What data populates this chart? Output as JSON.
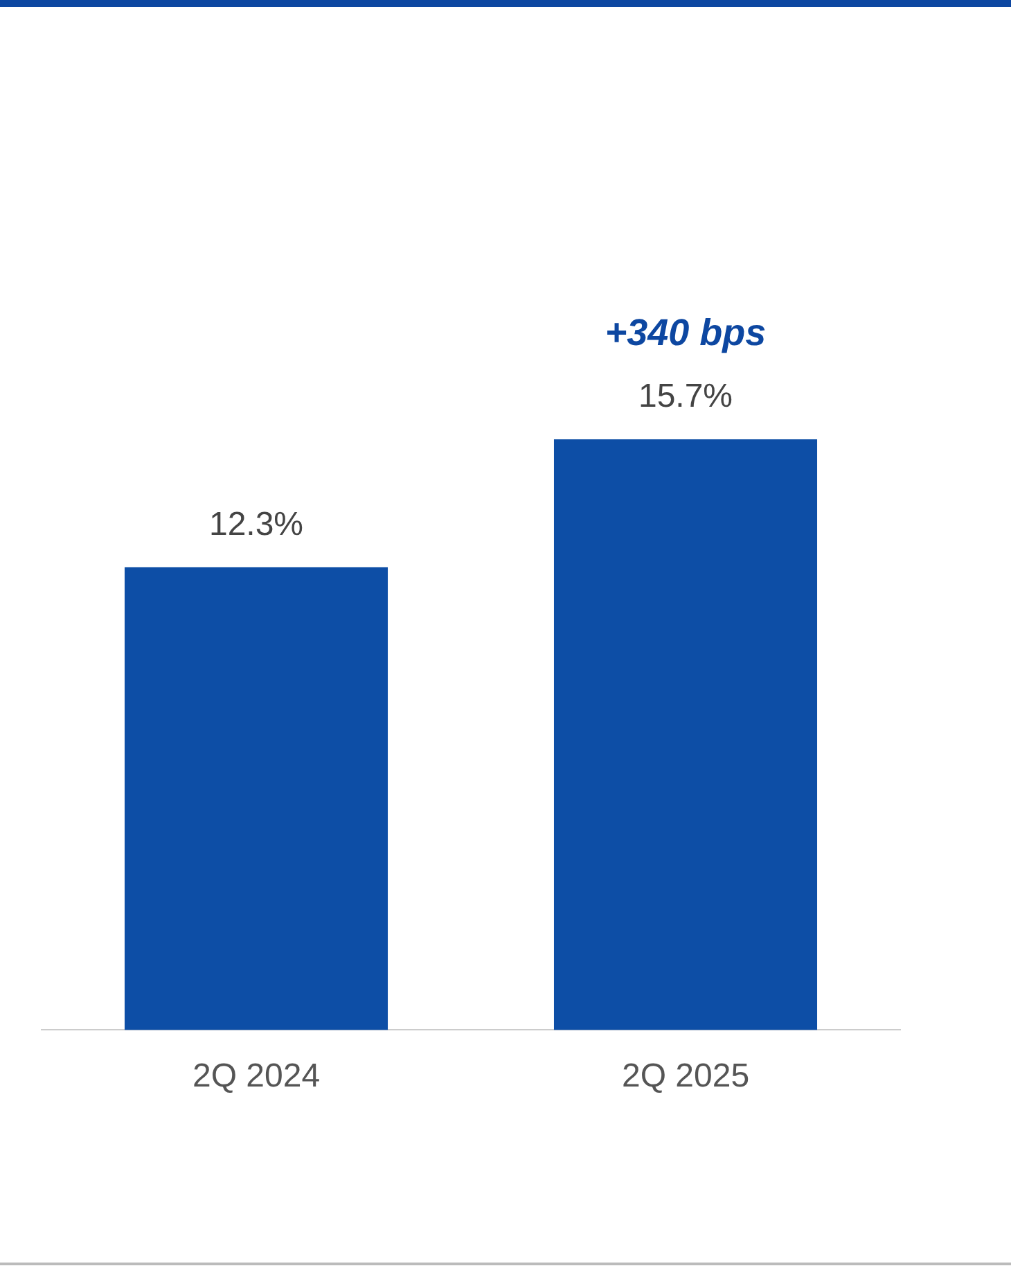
{
  "chart_data": {
    "type": "bar",
    "categories": [
      "2Q 2024",
      "2Q 2025"
    ],
    "series": [
      {
        "color": "#0d4ea6",
        "values": [
          12.3,
          15.7
        ],
        "value_labels": [
          "12.3%",
          "15.7%"
        ]
      }
    ],
    "annotations": [
      "+340 bps"
    ],
    "grid": false,
    "legend": false
  }
}
